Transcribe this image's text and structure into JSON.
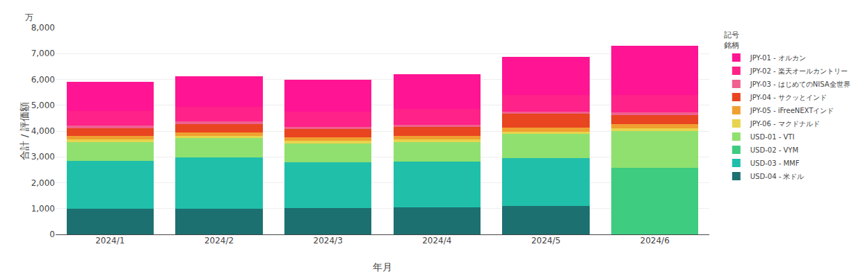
{
  "chart_data": {
    "type": "bar",
    "stacked": true,
    "categories": [
      "2024/1",
      "2024/2",
      "2024/3",
      "2024/4",
      "2024/5",
      "2024/6"
    ],
    "series": [
      {
        "name": "USD-04 - 米ドル",
        "color": "#1c7070",
        "values": [
          1000,
          1000,
          1020,
          1050,
          1100,
          0
        ]
      },
      {
        "name": "USD-03 - MMF",
        "color": "#20bfaa",
        "values": [
          1850,
          1980,
          1760,
          1760,
          1850,
          0
        ]
      },
      {
        "name": "USD-02 - VYM",
        "color": "#3dcc80",
        "values": [
          0,
          0,
          0,
          0,
          0,
          2580
        ]
      },
      {
        "name": "USD-01 - VTI",
        "color": "#90e070",
        "values": [
          730,
          740,
          750,
          760,
          930,
          1430
        ]
      },
      {
        "name": "JPY-06 - マクドナルド",
        "color": "#e8d44d",
        "values": [
          100,
          100,
          100,
          100,
          100,
          100
        ]
      },
      {
        "name": "JPY-05 - iFreeNEXTインド",
        "color": "#f0a030",
        "values": [
          130,
          130,
          130,
          150,
          150,
          150
        ]
      },
      {
        "name": "JPY-04 - サクッとインド",
        "color": "#e84520",
        "values": [
          310,
          330,
          310,
          330,
          530,
          370
        ]
      },
      {
        "name": "JPY-03 - はじめてのNISA全世界",
        "color": "#f06090",
        "values": [
          100,
          100,
          100,
          100,
          100,
          100
        ]
      },
      {
        "name": "JPY-02 - 楽天オールカントリー",
        "color": "#ff2288",
        "values": [
          560,
          570,
          590,
          600,
          640,
          670
        ]
      },
      {
        "name": "JPY-01 - オルカン",
        "color": "#ff1493",
        "values": [
          1120,
          1160,
          1240,
          1350,
          1470,
          1900
        ]
      }
    ],
    "xlabel": "年月",
    "ylabel": "合計 / 評価額",
    "annotations": [
      "万",
      "記号",
      "銘柄"
    ],
    "ylim": [
      0,
      8000
    ],
    "yticks": [
      0,
      {
        "value": 1000,
        "label": "1,000"
      },
      {
        "value": 2000,
        "label": "2,000"
      },
      {
        "value": 3000,
        "label": "3,000"
      },
      {
        "value": 4000,
        "label": "4,000"
      },
      {
        "value": 5000,
        "label": "5,000"
      },
      {
        "value": 6000,
        "label": "6,000"
      },
      {
        "value": 7000,
        "label": "7,000"
      },
      {
        "value": 8000,
        "label": "8,000"
      }
    ],
    "grid": true,
    "legend": "right"
  }
}
